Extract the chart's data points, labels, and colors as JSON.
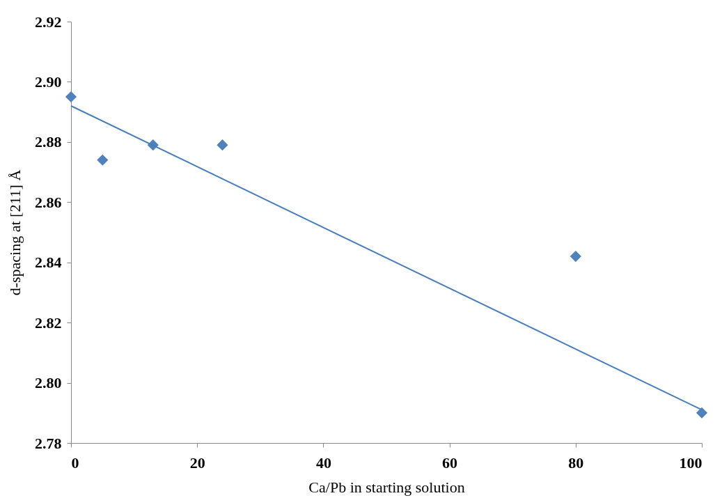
{
  "chart_data": {
    "type": "scatter",
    "xlabel": "Ca/Pb in starting solution",
    "ylabel": "d-spacing at [211] Å",
    "series": [
      {
        "color": "#4f81bd",
        "x": [
          0,
          5,
          13,
          24,
          80,
          100
        ],
        "values": [
          2.895,
          2.874,
          2.879,
          2.879,
          2.842,
          2.79
        ],
        "marker": "diamond"
      },
      {
        "type": "line",
        "color": "#4a7ebb",
        "x": [
          0,
          100
        ],
        "values": [
          2.892,
          2.791
        ],
        "marker": "none",
        "line_style": "solid"
      }
    ],
    "xlim": [
      0,
      100
    ],
    "xticks": [
      0,
      20,
      40,
      60,
      80,
      100
    ],
    "ylim": [
      2.78,
      2.92
    ],
    "yticks": [
      2.78,
      {
        "value": 2.8,
        "label": "2.80"
      },
      2.82,
      2.84,
      2.86,
      2.88,
      {
        "value": 2.9,
        "label": "2.90"
      },
      2.92
    ],
    "grid": false
  }
}
